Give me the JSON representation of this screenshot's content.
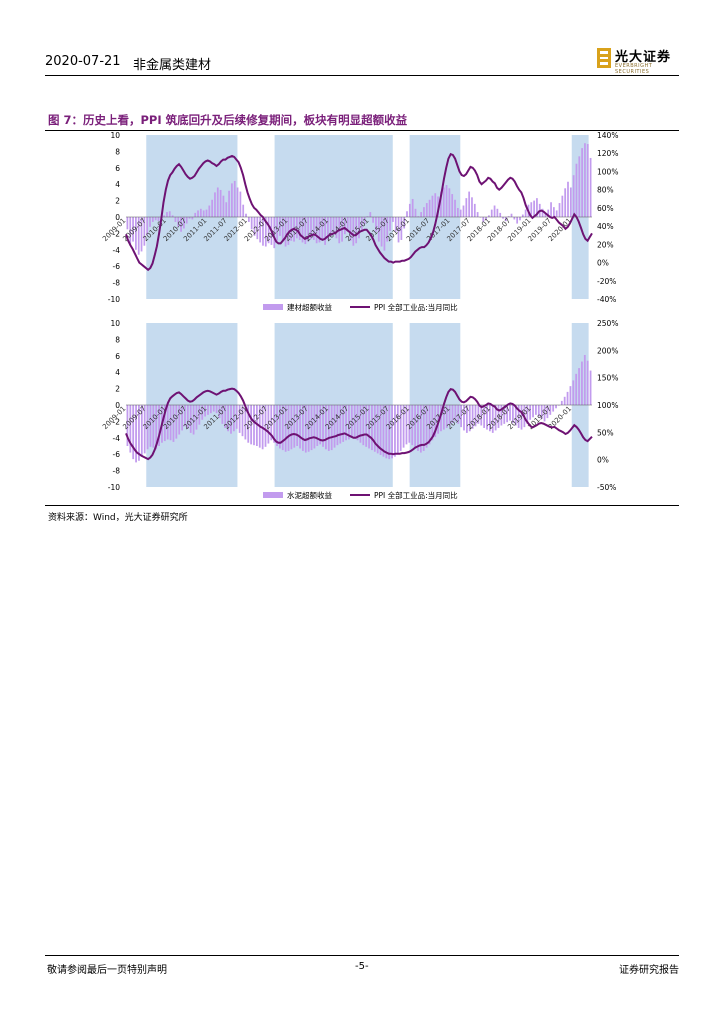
{
  "header": {
    "date": "2020-07-21",
    "sector": "非金属类建材",
    "logo_text": "光大证券",
    "logo_sub": "EVERBRIGHT SECURITIES"
  },
  "figure": {
    "title": "图 7：历史上看，PPI 筑底回升及后续修复期间，板块有明显超额收益"
  },
  "source": "资料来源：Wind，光大证券研究所",
  "footer": {
    "left": "敬请参阅最后一页特别声明",
    "page": "-5-",
    "right": "证券研究报告"
  },
  "colors": {
    "bar": "#c29bee",
    "line": "#6e1273",
    "shade": "#c6dbef",
    "header_rule": "#000000"
  },
  "chart_data": [
    {
      "type": "bar+line",
      "x_labels": [
        "2009-01",
        "2009-07",
        "2010-01",
        "2010-07",
        "2011-01",
        "2011-07",
        "2012-01",
        "2012-07",
        "2013-01",
        "2013-07",
        "2014-01",
        "2014-07",
        "2015-01",
        "2015-07",
        "2016-01",
        "2016-07",
        "2017-01",
        "2017-07",
        "2018-01",
        "2018-07",
        "2019-01",
        "2019-07",
        "2020-01"
      ],
      "shade_periods": [
        [
          "2009-07",
          "2011-09"
        ],
        [
          "2012-09",
          "2015-07"
        ],
        [
          "2016-01",
          "2017-03"
        ],
        [
          "2020-01",
          "2020-05"
        ]
      ],
      "ylim_left": [
        -10,
        10
      ],
      "yticks_left": [
        "10",
        "8",
        "6",
        "4",
        "2",
        "0",
        "-2",
        "-4",
        "-6",
        "-8",
        "-10"
      ],
      "ylim_right": [
        -40,
        140
      ],
      "yticks_right": [
        "140%",
        "120%",
        "100%",
        "80%",
        "60%",
        "40%",
        "20%",
        "0%",
        "-20%",
        "-40%"
      ],
      "series": [
        {
          "name": "建材超额收益",
          "kind": "bar",
          "axis": "left",
          "values": [
            -1.5,
            -3.5,
            -3.0,
            -4.0,
            -4.6,
            -4.2,
            -3.5,
            -2.2,
            -1.2,
            -0.6,
            -0.4,
            -0.5,
            -0.2,
            0.2,
            0.6,
            0.7,
            0.2,
            -0.6,
            -1.2,
            -1.8,
            -1.4,
            -0.8,
            -0.2,
            -0.3,
            0.5,
            0.8,
            1.0,
            0.8,
            0.9,
            1.4,
            2.1,
            3.0,
            3.6,
            3.3,
            2.6,
            1.8,
            3.2,
            4.1,
            4.4,
            3.6,
            3.1,
            1.5,
            0.4,
            -0.6,
            -1.5,
            -2.3,
            -2.7,
            -3.1,
            -3.5,
            -3.6,
            -3.2,
            -3.4,
            -3.8,
            -2.9,
            -2.3,
            -3.0,
            -3.6,
            -3.4,
            -2.9,
            -3.0,
            -2.6,
            -2.8,
            -3.1,
            -3.3,
            -3.0,
            -2.7,
            -2.8,
            -3.2,
            -3.1,
            -2.9,
            -3.4,
            -2.8,
            -2.3,
            -1.9,
            -2.6,
            -3.2,
            -3.0,
            -2.1,
            -1.8,
            -2.9,
            -3.5,
            -3.2,
            -2.6,
            -1.8,
            -0.9,
            0.1,
            0.6,
            -0.7,
            -1.8,
            -3.0,
            -3.6,
            -4.1,
            -3.0,
            -1.7,
            -0.6,
            -1.8,
            -3.1,
            -2.8,
            -1.4,
            0.7,
            1.6,
            2.2,
            1.0,
            0.1,
            0.6,
            1.2,
            1.7,
            2.1,
            2.6,
            2.9,
            2.5,
            3.1,
            3.6,
            3.9,
            3.5,
            2.8,
            2.1,
            1.1,
            0.9,
            1.4,
            2.3,
            3.1,
            2.4,
            1.6,
            0.6,
            0.0,
            -0.6,
            -0.3,
            0.2,
            0.9,
            1.4,
            1.0,
            0.5,
            -0.2,
            -0.5,
            0.1,
            0.4,
            -0.3,
            -0.8,
            -0.4,
            0.3,
            0.9,
            1.5,
            1.8,
            2.0,
            2.3,
            1.6,
            1.0,
            0.5,
            0.9,
            1.8,
            1.2,
            0.8,
            1.7,
            2.6,
            3.5,
            4.3,
            3.6,
            5.1,
            6.5,
            7.4,
            8.4,
            9.0,
            8.9,
            7.2
          ]
        },
        {
          "name": "PPI 全部工业品:当月同比",
          "kind": "line",
          "axis": "right",
          "values": [
            31,
            24,
            19,
            15,
            10,
            5,
            0,
            -2,
            -4,
            -6,
            -8,
            -6,
            -1,
            8,
            18,
            32,
            48,
            66,
            80,
            90,
            96,
            99,
            103,
            106,
            108,
            105,
            101,
            97,
            94,
            92,
            93,
            95,
            99,
            103,
            106,
            109,
            111,
            112,
            111,
            109,
            108,
            106,
            108,
            111,
            113,
            113,
            115,
            116,
            117,
            116,
            113,
            110,
            104,
            96,
            86,
            77,
            70,
            64,
            60,
            58,
            55,
            52,
            50,
            46,
            43,
            39,
            34,
            28,
            23,
            21,
            21,
            24,
            27,
            31,
            34,
            36,
            37,
            36,
            34,
            30,
            28,
            26,
            27,
            29,
            30,
            31,
            30,
            28,
            26,
            25,
            26,
            28,
            30,
            31,
            32,
            33,
            35,
            36,
            37,
            38,
            36,
            34,
            32,
            30,
            30,
            32,
            34,
            35,
            36,
            36,
            33,
            30,
            25,
            19,
            15,
            11,
            8,
            5,
            3,
            1,
            1,
            0,
            1,
            1,
            1,
            2,
            2,
            3,
            4,
            6,
            9,
            12,
            14,
            16,
            17,
            17,
            19,
            22,
            27,
            33,
            42,
            53,
            65,
            78,
            92,
            104,
            114,
            119,
            118,
            114,
            107,
            100,
            96,
            95,
            97,
            101,
            105,
            104,
            101,
            96,
            89,
            86,
            88,
            90,
            93,
            92,
            89,
            87,
            82,
            80,
            82,
            85,
            88,
            91,
            93,
            92,
            89,
            84,
            80,
            77,
            71,
            63,
            57,
            52,
            49,
            51,
            53,
            56,
            57,
            56,
            54,
            52,
            50,
            49,
            50,
            47,
            44,
            42,
            40,
            37,
            39,
            43,
            48,
            53,
            50,
            45,
            38,
            31,
            26,
            24,
            28,
            32
          ]
        }
      ]
    },
    {
      "type": "bar+line",
      "x_labels": [
        "2009-01",
        "2009-07",
        "2010-01",
        "2010-07",
        "2011-01",
        "2011-07",
        "2012-01",
        "2012-07",
        "2013-01",
        "2013-07",
        "2014-01",
        "2014-07",
        "2015-01",
        "2015-07",
        "2016-01",
        "2016-07",
        "2017-01",
        "2017-07",
        "2018-01",
        "2018-07",
        "2019-01",
        "2019-07",
        "2020-01"
      ],
      "shade_periods": [
        [
          "2009-07",
          "2011-09"
        ],
        [
          "2012-09",
          "2015-07"
        ],
        [
          "2016-01",
          "2017-03"
        ],
        [
          "2020-01",
          "2020-05"
        ]
      ],
      "ylim_left": [
        -10,
        10
      ],
      "yticks_left": [
        "10",
        "8",
        "6",
        "4",
        "2",
        "0",
        "-2",
        "-4",
        "-6",
        "-8",
        "-10"
      ],
      "ylim_right": [
        -50,
        250
      ],
      "yticks_right": [
        "250%",
        "200%",
        "150%",
        "100%",
        "50%",
        "0%",
        "-50%"
      ],
      "series": [
        {
          "name": "水泥超额收益",
          "kind": "bar",
          "axis": "left",
          "values": [
            -5.0,
            -5.8,
            -6.6,
            -7.0,
            -6.8,
            -6.2,
            -5.9,
            -5.4,
            -5.1,
            -5.2,
            -5.4,
            -5.0,
            -4.6,
            -4.4,
            -4.2,
            -4.3,
            -4.5,
            -4.1,
            -3.6,
            -3.1,
            -2.6,
            -2.9,
            -3.4,
            -3.6,
            -3.0,
            -2.4,
            -1.8,
            -1.4,
            -1.2,
            -1.0,
            -0.8,
            -1.0,
            -1.6,
            -2.3,
            -2.8,
            -3.2,
            -3.5,
            -3.2,
            -2.9,
            -3.4,
            -3.8,
            -4.2,
            -4.6,
            -4.8,
            -4.9,
            -5.0,
            -5.2,
            -5.4,
            -5.1,
            -4.7,
            -4.3,
            -4.6,
            -5.0,
            -5.3,
            -5.5,
            -5.7,
            -5.6,
            -5.4,
            -5.2,
            -5.0,
            -5.3,
            -5.6,
            -5.8,
            -5.7,
            -5.5,
            -5.3,
            -5.0,
            -4.8,
            -5.1,
            -5.4,
            -5.6,
            -5.5,
            -5.2,
            -4.9,
            -4.7,
            -4.5,
            -4.3,
            -4.2,
            -4.0,
            -4.1,
            -4.3,
            -4.6,
            -4.9,
            -5.1,
            -5.3,
            -5.5,
            -5.7,
            -5.9,
            -6.1,
            -6.3,
            -6.5,
            -6.6,
            -6.5,
            -6.3,
            -6.0,
            -5.6,
            -5.2,
            -4.8,
            -4.6,
            -4.9,
            -5.3,
            -5.6,
            -5.8,
            -5.6,
            -5.2,
            -4.8,
            -4.3,
            -3.9,
            -3.5,
            -3.2,
            -3.0,
            -2.8,
            -2.5,
            -2.2,
            -2.0,
            -2.3,
            -2.7,
            -3.1,
            -3.4,
            -3.2,
            -2.9,
            -2.6,
            -2.3,
            -2.5,
            -2.8,
            -3.0,
            -3.2,
            -3.4,
            -3.1,
            -2.8,
            -2.5,
            -2.3,
            -2.1,
            -1.9,
            -2.2,
            -2.5,
            -2.8,
            -3.0,
            -2.7,
            -2.3,
            -1.8,
            -1.5,
            -1.2,
            -1.4,
            -1.7,
            -2.0,
            -1.6,
            -1.2,
            -0.8,
            -0.4,
            0.0,
            0.5,
            1.0,
            1.6,
            2.3,
            3.0,
            3.8,
            4.5,
            5.3,
            6.1,
            5.4,
            4.2
          ]
        },
        {
          "name": "PPI 全部工业品:当月同比",
          "kind": "line",
          "axis": "right",
          "values": [
            48,
            38,
            30,
            24,
            18,
            13,
            10,
            7,
            5,
            3,
            1,
            4,
            9,
            18,
            30,
            44,
            60,
            76,
            92,
            104,
            112,
            116,
            119,
            122,
            123,
            120,
            116,
            112,
            108,
            106,
            107,
            110,
            114,
            117,
            120,
            123,
            125,
            126,
            125,
            123,
            121,
            119,
            121,
            124,
            126,
            126,
            128,
            129,
            130,
            129,
            126,
            122,
            116,
            108,
            98,
            88,
            80,
            73,
            69,
            66,
            63,
            60,
            58,
            55,
            52,
            48,
            44,
            38,
            33,
            31,
            31,
            34,
            37,
            41,
            44,
            46,
            47,
            46,
            44,
            41,
            38,
            36,
            37,
            39,
            40,
            41,
            40,
            38,
            36,
            35,
            36,
            38,
            40,
            41,
            42,
            43,
            45,
            46,
            47,
            48,
            46,
            44,
            42,
            40,
            40,
            42,
            44,
            45,
            46,
            46,
            43,
            40,
            35,
            29,
            25,
            21,
            18,
            15,
            13,
            11,
            11,
            10,
            11,
            11,
            11,
            12,
            12,
            13,
            14,
            16,
            19,
            22,
            24,
            26,
            27,
            27,
            29,
            32,
            37,
            43,
            52,
            63,
            75,
            88,
            102,
            114,
            124,
            129,
            128,
            124,
            117,
            110,
            106,
            105,
            107,
            111,
            115,
            114,
            111,
            106,
            99,
            96,
            98,
            100,
            103,
            102,
            99,
            97,
            92,
            90,
            92,
            95,
            98,
            101,
            103,
            102,
            99,
            94,
            90,
            87,
            81,
            73,
            67,
            62,
            59,
            61,
            63,
            66,
            67,
            66,
            64,
            62,
            60,
            59,
            60,
            57,
            54,
            52,
            50,
            47,
            49,
            53,
            58,
            63,
            60,
            55,
            48,
            41,
            36,
            34,
            38,
            42
          ]
        }
      ]
    }
  ]
}
